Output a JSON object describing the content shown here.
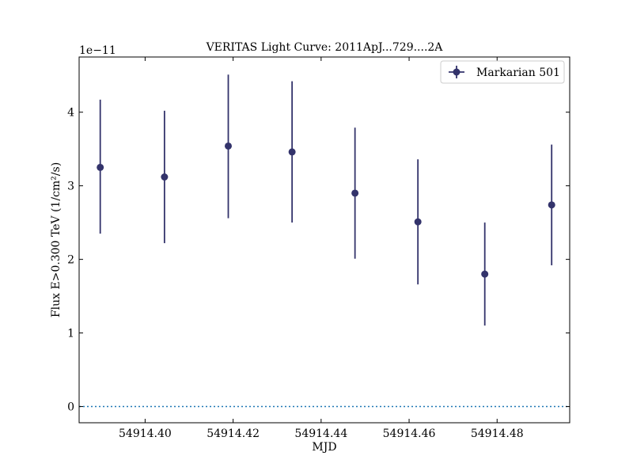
{
  "chart_data": {
    "type": "scatter",
    "title": "VERITAS Light Curve: 2011ApJ...729....2A",
    "xlabel": "MJD",
    "ylabel": "Flux E>0.300 TeV (1/cm²/s)",
    "offset_label": "1e−11",
    "xlim": [
      54914.385,
      54914.4965
    ],
    "ylim": [
      -2.2e-12,
      4.75e-11
    ],
    "x_ticks": [
      54914.4,
      54914.42,
      54914.44,
      54914.46,
      54914.48
    ],
    "x_tick_labels": [
      "54914.40",
      "54914.42",
      "54914.44",
      "54914.46",
      "54914.48"
    ],
    "y_ticks": [
      0,
      1e-11,
      2e-11,
      3e-11,
      4e-11
    ],
    "y_tick_labels": [
      "0",
      "1",
      "2",
      "3",
      "4"
    ],
    "grid": false,
    "legend_position": "top-right",
    "reference_line": {
      "y": 0,
      "style": "dotted",
      "color": "#1f77b4"
    },
    "series": [
      {
        "name": "Markarian 501",
        "color": "#33336b",
        "marker": "circle",
        "x": [
          54914.3898,
          54914.4044,
          54914.4189,
          54914.4334,
          54914.4477,
          54914.462,
          54914.4772,
          54914.4924
        ],
        "y": [
          3.25e-11,
          3.12e-11,
          3.54e-11,
          3.46e-11,
          2.9e-11,
          2.51e-11,
          1.8e-11,
          2.74e-11
        ],
        "y_err_low": [
          9e-12,
          9e-12,
          9.8e-12,
          9.6e-12,
          8.9e-12,
          8.5e-12,
          7e-12,
          8.2e-12
        ],
        "y_err_high": [
          9.2e-12,
          9e-12,
          9.7e-12,
          9.6e-12,
          8.9e-12,
          8.5e-12,
          7e-12,
          8.2e-12
        ]
      }
    ]
  }
}
